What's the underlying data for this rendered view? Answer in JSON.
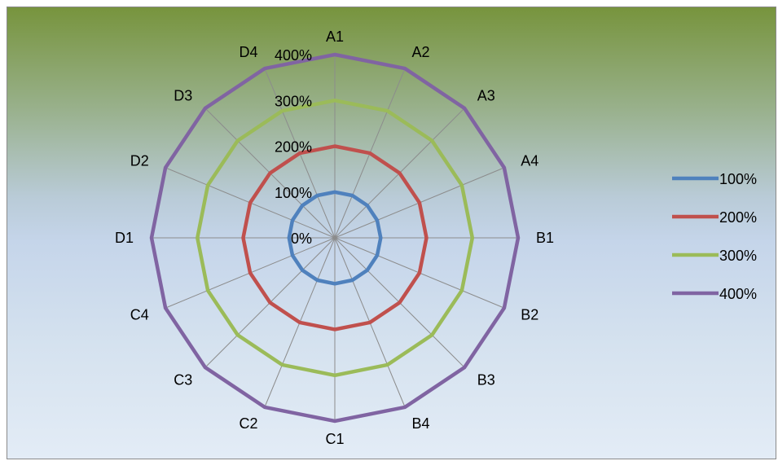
{
  "chart_data": {
    "type": "radar",
    "title": "",
    "categories": [
      "A1",
      "A2",
      "A3",
      "A4",
      "B1",
      "B2",
      "B3",
      "B4",
      "C1",
      "C2",
      "C3",
      "C4",
      "D1",
      "D2",
      "D3",
      "D4"
    ],
    "radial_axis": {
      "min": 0,
      "max": 4,
      "tick_values": [
        0,
        1,
        2,
        3,
        4
      ],
      "tick_labels": [
        "0%",
        "100%",
        "200%",
        "300%",
        "400%"
      ]
    },
    "grid": true,
    "legend_position": "right",
    "series": [
      {
        "name": "100%",
        "color": "#4f81bd",
        "values": [
          1,
          1,
          1,
          1,
          1,
          1,
          1,
          1,
          1,
          1,
          1,
          1,
          1,
          1,
          1,
          1
        ]
      },
      {
        "name": "200%",
        "color": "#c0504d",
        "values": [
          2,
          2,
          2,
          2,
          2,
          2,
          2,
          2,
          2,
          2,
          2,
          2,
          2,
          2,
          2,
          2
        ]
      },
      {
        "name": "300%",
        "color": "#9bbb59",
        "values": [
          3,
          3,
          3,
          3,
          3,
          3,
          3,
          3,
          3,
          3,
          3,
          3,
          3,
          3,
          3,
          3
        ]
      },
      {
        "name": "400%",
        "color": "#8064a2",
        "values": [
          4,
          4,
          4,
          4,
          4,
          4,
          4,
          4,
          4,
          4,
          4,
          4,
          4,
          4,
          4,
          4
        ]
      }
    ]
  }
}
